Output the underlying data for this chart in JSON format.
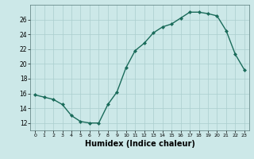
{
  "x": [
    0,
    1,
    2,
    3,
    4,
    5,
    6,
    7,
    8,
    9,
    10,
    11,
    12,
    13,
    14,
    15,
    16,
    17,
    18,
    19,
    20,
    21,
    22,
    23
  ],
  "y": [
    15.8,
    15.5,
    15.2,
    14.5,
    13.0,
    12.2,
    12.0,
    12.0,
    14.5,
    16.2,
    19.5,
    21.8,
    22.8,
    24.2,
    25.0,
    25.4,
    26.2,
    27.0,
    27.0,
    26.8,
    26.5,
    24.5,
    21.3,
    19.2
  ],
  "line_color": "#1a6b5a",
  "marker": "D",
  "markersize": 2.0,
  "linewidth": 1.0,
  "xlabel": "Humidex (Indice chaleur)",
  "xlabel_fontsize": 7,
  "xlabel_fontweight": "bold",
  "ylim": [
    11,
    28
  ],
  "xlim": [
    -0.5,
    23.5
  ],
  "yticks": [
    12,
    14,
    16,
    18,
    20,
    22,
    24,
    26
  ],
  "xticks": [
    0,
    1,
    2,
    3,
    4,
    5,
    6,
    7,
    8,
    9,
    10,
    11,
    12,
    13,
    14,
    15,
    16,
    17,
    18,
    19,
    20,
    21,
    22,
    23
  ],
  "bg_color": "#cce8e8",
  "grid_color": "#aacece",
  "ytick_fontsize": 5.5,
  "xtick_fontsize": 4.5
}
